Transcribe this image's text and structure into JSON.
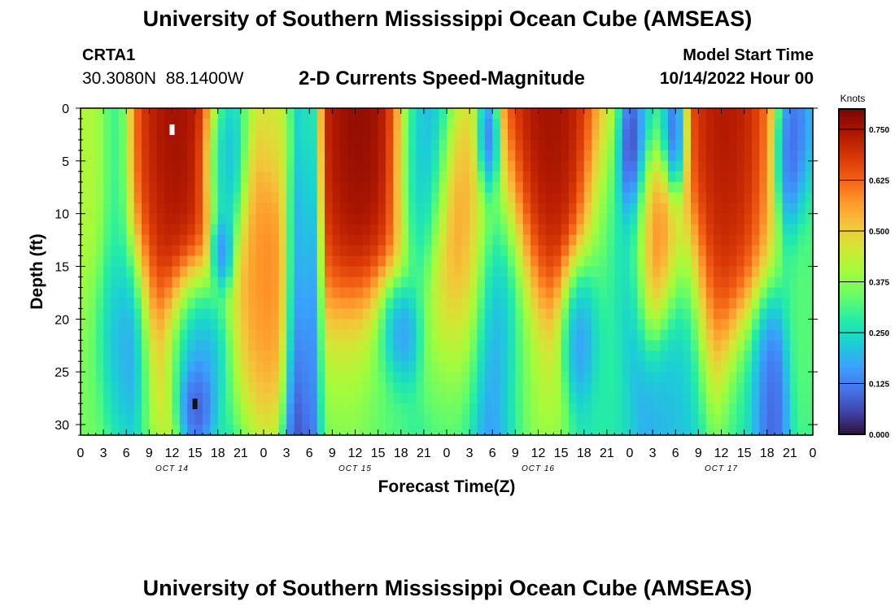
{
  "header": {
    "title": "University of Southern Mississippi Ocean Cube (AMSEAS)",
    "station_id": "CRTA1",
    "station_coords": "30.3080N  88.1400W",
    "chart_subtitle": "2-D Currents Speed-Magnitude",
    "start_label": "Model Start Time",
    "start_value": "10/14/2022 Hour 00"
  },
  "footer": {
    "title": "University of Southern Mississippi Ocean Cube (AMSEAS)"
  },
  "colors": {
    "background": "#ffffff",
    "axis": "#000000",
    "marker_light": "#ffffff",
    "marker_dark": "#111111"
  },
  "chart_data": {
    "type": "heatmap",
    "title": "2-D Currents Speed-Magnitude",
    "xlabel": "Forecast Time(Z)",
    "ylabel": "Depth (ft)",
    "xlim": [
      0,
      96
    ],
    "ylim": [
      31,
      0
    ],
    "x_tick_labels": [
      "0",
      "3",
      "6",
      "9",
      "12",
      "15",
      "18",
      "21",
      "0",
      "3",
      "6",
      "9",
      "12",
      "15",
      "18",
      "21",
      "0",
      "3",
      "6",
      "9",
      "12",
      "15",
      "18",
      "21",
      "0",
      "3",
      "6",
      "9",
      "12",
      "15",
      "18",
      "21",
      "0"
    ],
    "x_tick_hours": [
      0,
      3,
      6,
      9,
      12,
      15,
      18,
      21,
      24,
      27,
      30,
      33,
      36,
      39,
      42,
      45,
      48,
      51,
      54,
      57,
      60,
      63,
      66,
      69,
      72,
      75,
      78,
      81,
      84,
      87,
      90,
      93,
      96
    ],
    "day_labels": [
      {
        "label": "OCT 14",
        "hour": 12
      },
      {
        "label": "OCT 15",
        "hour": 36
      },
      {
        "label": "OCT 16",
        "hour": 60
      },
      {
        "label": "OCT 17",
        "hour": 84
      }
    ],
    "y_tick_labels": [
      "0",
      "5",
      "10",
      "15",
      "20",
      "25",
      "30"
    ],
    "y_tick_values": [
      0,
      5,
      10,
      15,
      20,
      25,
      30
    ],
    "colorbar": {
      "title": "Knots",
      "min": 0,
      "max": 0.8,
      "tick_labels": [
        "0.000",
        "0.125",
        "0.250",
        "0.375",
        "0.500",
        "0.625",
        "0.750"
      ],
      "tick_values": [
        0,
        0.125,
        0.25,
        0.375,
        0.5,
        0.625,
        0.75
      ],
      "stops": [
        {
          "v": 0.0,
          "c": "#30123b"
        },
        {
          "v": 0.07,
          "c": "#4145ab"
        },
        {
          "v": 0.14,
          "c": "#4675ed"
        },
        {
          "v": 0.21,
          "c": "#39a2fc"
        },
        {
          "v": 0.28,
          "c": "#1bcfd4"
        },
        {
          "v": 0.35,
          "c": "#24eca6"
        },
        {
          "v": 0.42,
          "c": "#61fc6c"
        },
        {
          "v": 0.5,
          "c": "#a4fc3b"
        },
        {
          "v": 0.57,
          "c": "#d1e834"
        },
        {
          "v": 0.64,
          "c": "#f3c63a"
        },
        {
          "v": 0.71,
          "c": "#fe9b2d"
        },
        {
          "v": 0.78,
          "c": "#f36315"
        },
        {
          "v": 0.85,
          "c": "#d93806"
        },
        {
          "v": 0.92,
          "c": "#b11901"
        },
        {
          "v": 1.0,
          "c": "#7a0403"
        }
      ]
    },
    "features": [
      {
        "t": 0.5,
        "d": 15,
        "v": 0.45,
        "st": 2.5,
        "sd": 35
      },
      {
        "t": 0.8,
        "d": 30,
        "v": 0.3,
        "st": 2,
        "sd": 7
      },
      {
        "t": 4.5,
        "d": 5,
        "v": 0.25,
        "st": 1,
        "sd": 25
      },
      {
        "t": 5,
        "d": 22,
        "v": 0.1,
        "st": 2,
        "sd": 5
      },
      {
        "t": 12.5,
        "d": 0,
        "v": 0.84,
        "st": 3.6,
        "sd": 15
      },
      {
        "t": 15,
        "d": 28,
        "v": 0.0,
        "st": 1.2,
        "sd": 2.5
      },
      {
        "t": 15,
        "d": 22,
        "v": 0.06,
        "st": 2,
        "sd": 4
      },
      {
        "t": 18.5,
        "d": 13.5,
        "v": 0.04,
        "st": 0.8,
        "sd": 2
      },
      {
        "t": 19,
        "d": 5,
        "v": 0.1,
        "st": 1.5,
        "sd": 5
      },
      {
        "t": 24.5,
        "d": 15,
        "v": 0.64,
        "st": 2.5,
        "sd": 9
      },
      {
        "t": 26,
        "d": 2,
        "v": 0.45,
        "st": 1.5,
        "sd": 4
      },
      {
        "t": 28.5,
        "d": 20,
        "v": 0.0,
        "st": 1,
        "sd": 22
      },
      {
        "t": 30.5,
        "d": 20,
        "v": 0.05,
        "st": 0.6,
        "sd": 25
      },
      {
        "t": 36.5,
        "d": 0,
        "v": 0.86,
        "st": 4,
        "sd": 15
      },
      {
        "t": 36,
        "d": 28,
        "v": 0.35,
        "st": 3,
        "sd": 6
      },
      {
        "t": 40,
        "d": 28,
        "v": 0.3,
        "st": 2,
        "sd": 6
      },
      {
        "t": 41.5,
        "d": 21.5,
        "v": 0.02,
        "st": 1.5,
        "sd": 3
      },
      {
        "t": 45,
        "d": 4,
        "v": 0.12,
        "st": 2,
        "sd": 8
      },
      {
        "t": 49.5,
        "d": 15,
        "v": 0.66,
        "st": 2.5,
        "sd": 9
      },
      {
        "t": 48.5,
        "d": 28,
        "v": 0.3,
        "st": 2,
        "sd": 7
      },
      {
        "t": 53.5,
        "d": 3,
        "v": 0.0,
        "st": 0.8,
        "sd": 3
      },
      {
        "t": 54.5,
        "d": 25,
        "v": 0.08,
        "st": 2.5,
        "sd": 10
      },
      {
        "t": 61.5,
        "d": 0,
        "v": 0.84,
        "st": 4,
        "sd": 13
      },
      {
        "t": 58.5,
        "d": 28,
        "v": 0.42,
        "st": 2.5,
        "sd": 6
      },
      {
        "t": 65.5,
        "d": 21,
        "v": 0.05,
        "st": 1.5,
        "sd": 4
      },
      {
        "t": 69,
        "d": 20,
        "v": 0.3,
        "st": 2,
        "sd": 10
      },
      {
        "t": 72,
        "d": 5,
        "v": 0.0,
        "st": 0.8,
        "sd": 3.5
      },
      {
        "t": 72.5,
        "d": 15,
        "v": 0.12,
        "st": 1.5,
        "sd": 6
      },
      {
        "t": 75,
        "d": 14,
        "v": 0.74,
        "st": 2,
        "sd": 4.5
      },
      {
        "t": 78,
        "d": 2,
        "v": 0.0,
        "st": 0.8,
        "sd": 3.5
      },
      {
        "t": 78,
        "d": 25,
        "v": 0.2,
        "st": 2,
        "sd": 8
      },
      {
        "t": 84.5,
        "d": 0,
        "v": 0.82,
        "st": 3.5,
        "sd": 14
      },
      {
        "t": 90,
        "d": 28,
        "v": 0.0,
        "st": 1.2,
        "sd": 5
      },
      {
        "t": 88,
        "d": 28,
        "v": 0.25,
        "st": 2,
        "sd": 5
      },
      {
        "t": 93.5,
        "d": 4,
        "v": 0.05,
        "st": 1.2,
        "sd": 4
      },
      {
        "t": 95,
        "d": 20,
        "v": 0.35,
        "st": 1.2,
        "sd": 10
      }
    ],
    "markers": [
      {
        "hour": 12,
        "depth": 2,
        "color": "#ffffff"
      },
      {
        "hour": 15,
        "depth": 28,
        "color": "#111111"
      }
    ]
  }
}
